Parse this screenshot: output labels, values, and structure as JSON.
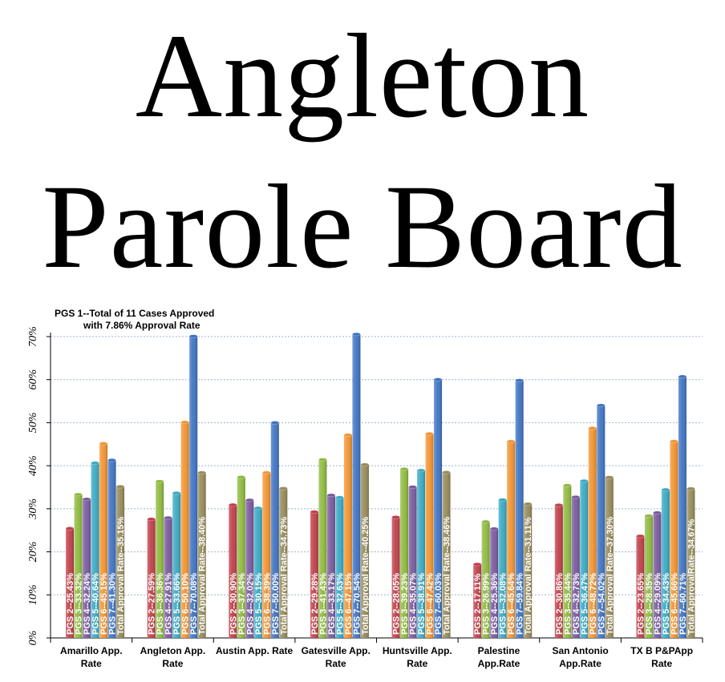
{
  "title": {
    "line1": "Angleton",
    "line2": "Parole Board"
  },
  "chart_data": {
    "type": "bar",
    "note": [
      "PGS 1--Total of 11 Cases Approved",
      "with 7.86% Approval Rate"
    ],
    "ylim": [
      0,
      70
    ],
    "y_ticks": [
      "0%",
      "10%",
      "20%",
      "30%",
      "40%",
      "50%",
      "60%",
      "70%"
    ],
    "grid": true,
    "categories": [
      [
        "Amarillo App.",
        "Rate"
      ],
      [
        "Angleton App.",
        "Rate"
      ],
      [
        "Austin App. Rate"
      ],
      [
        "Gatesville App.",
        "Rate"
      ],
      [
        "Huntsville App.",
        "Rate"
      ],
      [
        "Palestine",
        "App.Rate"
      ],
      [
        "San Antonio",
        "App.Rate"
      ],
      [
        "TX B P&PApp",
        "Rate"
      ]
    ],
    "series": [
      {
        "color": "#c0404a",
        "values": [
          25.43,
          27.59,
          30.9,
          29.28,
          28.05,
          17.11,
          30.86,
          23.65
        ],
        "labels": [
          "PGS 2--25.43%",
          "PGS 2--27.59%",
          "PGS 2--30.90%",
          "PGS 2--29.28%",
          "PGS 2--28.05%",
          "PGS 2--17.11%",
          "PGS 2--30.86%",
          "PGS 2--23.65%"
        ]
      },
      {
        "color": "#8fba3f",
        "values": [
          33.32,
          36.36,
          37.34,
          41.43,
          39.23,
          26.99,
          35.44,
          28.35
        ],
        "labels": [
          "PGS 3--33.32%",
          "PGS 3--36.36%",
          "PGS 3--37.34%",
          "PGS 3--41.43%",
          "PGS 3--39.23%",
          "PGS 3--26.99%",
          "PGS 3--35.44%",
          "PGS 3--28.35%"
        ]
      },
      {
        "color": "#7a5a9e",
        "values": [
          32.24,
          27.91,
          32.02,
          33.17,
          35.07,
          25.36,
          32.73,
          29.09
        ],
        "labels": [
          "PGS 4--32.24%",
          "PGS 4--27.91%",
          "PGS 4--32.02%",
          "PGS 4--33.17%",
          "PGS 4--35.07%",
          "PGS 4--25.36%",
          "PGS 4--32.73%",
          "PGS 4--29.09%"
        ]
      },
      {
        "color": "#3aaac4",
        "values": [
          40.64,
          33.66,
          30.15,
          32.63,
          38.91,
          32.08,
          36.47,
          34.43
        ],
        "labels": [
          "PGS 5--40.64%",
          "PGS 5--33.66%",
          "PGS 5--30.15%",
          "PGS 5--32.63%",
          "PGS 5--38.91%",
          "PGS 5--32.08%",
          "PGS 5--36.47%",
          "PGS 5--34.43%"
        ]
      },
      {
        "color": "#f39430",
        "values": [
          45.15,
          50.1,
          38.39,
          47.15,
          47.42,
          45.64,
          48.72,
          45.66
        ],
        "labels": [
          "PGS 6--45.15%",
          "PGS 6--50.10%",
          "PGS 6--38.39%",
          "PGS 6--47.15%",
          "PGS 6--47.42%",
          "PGS 6--45.64%",
          "PGS 6--48.72%",
          "PGS 6--45.66%"
        ]
      },
      {
        "color": "#3f74c3",
        "values": [
          41.3,
          70.08,
          50.0,
          70.54,
          60.03,
          59.84,
          54.02,
          60.71
        ],
        "labels": [
          "PGS 7--41.30%",
          "PGS 7--70.08%",
          "PGS 7--50.00%",
          "PGS 7--70.54%",
          "PGS 7--60.03%",
          "PGS 7--59.84%",
          "PGS 7--54.02%",
          "PGS 7--60.71%"
        ]
      },
      {
        "color": "#978b5a",
        "values": [
          35.15,
          38.4,
          34.73,
          40.25,
          38.46,
          31.11,
          37.3,
          34.67
        ],
        "labels": [
          "Total Approval Rate--35.15%",
          "Total Approval Rate--38.40%",
          "Total Approval Rate--34.73%",
          "Total Approval Rate--40.25%",
          "Total Approval Rate--38.46%",
          "Total Approval Rate--31.11%",
          "Total Approval Rate--37.30%",
          "Total ApprovalRate--34.67%"
        ]
      }
    ]
  }
}
